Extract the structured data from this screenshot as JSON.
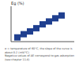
{
  "chart_data": {
    "type": "scatter",
    "y_label": "Eg (%)",
    "x": [
      1,
      2,
      3,
      4,
      5,
      6,
      7,
      8
    ],
    "values": [
      1.2,
      2.1,
      2.9,
      3.8,
      4.9,
      5.7,
      6.6,
      7.4
    ],
    "color": "#1f3f8f",
    "marker": "square",
    "line_style": "solid",
    "xlim": [
      0,
      10
    ],
    "ylim": [
      0,
      10
    ],
    "xticks": [
      0,
      2,
      4,
      6,
      8,
      10
    ],
    "yticks": [
      0,
      2,
      4,
      6,
      8,
      10
    ],
    "grid": false,
    "tick_labels": false,
    "annotations": [
      "σ = temperature of 60°C, the slope of the curve is about 0.2 (mV/°C)",
      "Negative values of ΔE correspond to gas adsorption",
      "(see chapter 11.4)"
    ]
  }
}
